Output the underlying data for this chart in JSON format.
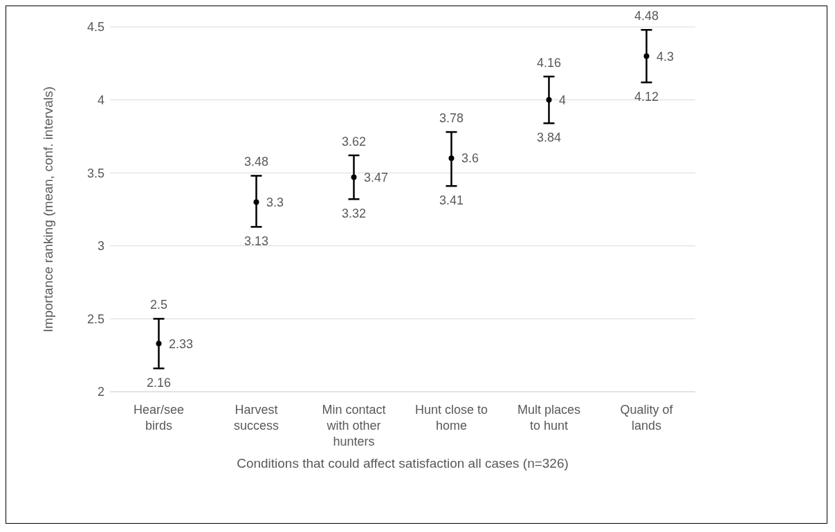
{
  "chart_data": {
    "type": "scatter",
    "xlabel": "Conditions that could affect satisfaction all cases (n=326)",
    "ylabel": "Importance ranking (mean, conf. intervals)",
    "categories": [
      "Hear/see birds",
      "Harvest success",
      "Min contact with other hunters",
      "Hunt close to home",
      "Mult places to hunt",
      "Quality of lands"
    ],
    "values": [
      2.33,
      3.3,
      3.47,
      3.6,
      4,
      4.3
    ],
    "errors": [
      [
        2.16,
        2.5
      ],
      [
        3.13,
        3.48
      ],
      [
        3.32,
        3.62
      ],
      [
        3.41,
        3.78
      ],
      [
        3.84,
        4.16
      ],
      [
        4.12,
        4.48
      ]
    ],
    "color": "#000000",
    "marker": "circle",
    "data_labels": true,
    "ylim": [
      2,
      4.5
    ],
    "yticks": [
      2,
      2.5,
      3,
      3.5,
      4,
      4.5
    ],
    "grid": "y",
    "legend": false,
    "annotations": [
      {
        "text": "2.5",
        "x": "Hear/see birds",
        "y": 2.5
      },
      {
        "text": "2.16",
        "x": "Hear/see birds",
        "y": 2.16
      },
      {
        "text": "3.48",
        "x": "Harvest success",
        "y": 3.48
      },
      {
        "text": "3.13",
        "x": "Harvest success",
        "y": 3.13
      },
      {
        "text": "3.62",
        "x": "Min contact with other hunters",
        "y": 3.62
      },
      {
        "text": "3.32",
        "x": "Min contact with other hunters",
        "y": 3.32
      },
      {
        "text": "3.78",
        "x": "Hunt close to home",
        "y": 3.78
      },
      {
        "text": "3.41",
        "x": "Hunt close to home",
        "y": 3.41
      },
      {
        "text": "4.16",
        "x": "Mult places to hunt",
        "y": 4.16
      },
      {
        "text": "3.84",
        "x": "Mult places to hunt",
        "y": 3.84
      },
      {
        "text": "4.48",
        "x": "Quality of lands",
        "y": 4.48
      },
      {
        "text": "4.12",
        "x": "Quality of lands",
        "y": 4.12
      }
    ]
  }
}
